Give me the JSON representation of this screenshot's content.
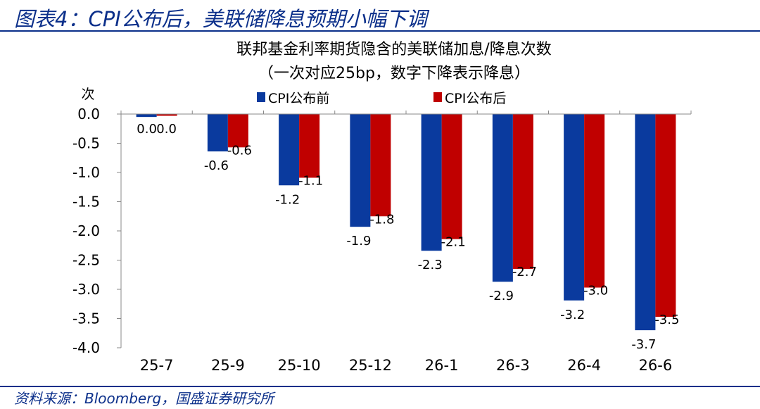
{
  "figure_title": "图表4：CPI公布后，美联储降息预期小幅下调",
  "source": "资料来源：Bloomberg，国盛证券研究所",
  "chart_data": {
    "type": "bar",
    "title": "联邦基金利率期货隐含的美联储加息/降息次数",
    "subtitle": "（一次对应25bp，数字下降表示降息）",
    "ylabel": "次",
    "xlabel": "",
    "categories": [
      "25-7",
      "25-9",
      "25-10",
      "25-12",
      "26-1",
      "26-3",
      "26-4",
      "26-6"
    ],
    "series": [
      {
        "name": "CPI公布前",
        "color": "#0a3a9e",
        "values": [
          -0.05,
          -0.64,
          -1.22,
          -1.93,
          -2.34,
          -2.87,
          -3.19,
          -3.7
        ],
        "labels": [
          "0.0",
          "-0.6",
          "-1.2",
          "-1.9",
          "-2.3",
          "-2.9",
          "-3.2",
          "-3.7"
        ]
      },
      {
        "name": "CPI公布后",
        "color": "#c00000",
        "values": [
          -0.03,
          -0.57,
          -1.09,
          -1.75,
          -2.14,
          -2.65,
          -2.97,
          -3.47
        ],
        "labels": [
          "0.0",
          "-0.6",
          "-1.1",
          "-1.8",
          "-2.1",
          "-2.7",
          "-3.0",
          "-3.5"
        ]
      }
    ],
    "yticks": [
      "0.0",
      "-0.5",
      "-1.0",
      "-1.5",
      "-2.0",
      "-2.5",
      "-3.0",
      "-3.5",
      "-4.0"
    ],
    "ylim": [
      -4.0,
      0.0
    ],
    "grid": false,
    "legend_position": "top"
  }
}
